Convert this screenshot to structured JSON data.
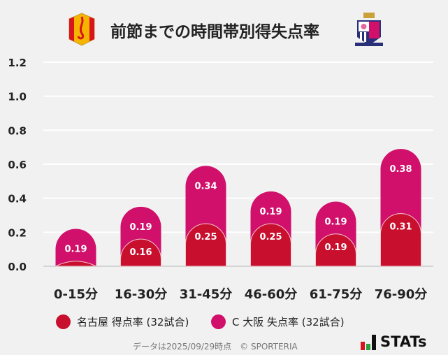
{
  "header": {
    "title": "前節までの時間帯別得失点率",
    "left_logo": "nagoya-grampus-crest",
    "right_logo": "cerezo-osaka-crest"
  },
  "chart_data": {
    "type": "bar",
    "stacked": true,
    "title": "前節までの時間帯別得失点率",
    "categories": [
      "0-15分",
      "16-30分",
      "31-45分",
      "46-60分",
      "61-75分",
      "76-90分"
    ],
    "series": [
      {
        "name": "名古屋 得点率 (32試合)",
        "color": "#c8102e",
        "values": [
          0.03,
          0.16,
          0.25,
          0.25,
          0.19,
          0.31
        ],
        "labels": [
          "",
          "0.16",
          "0.25",
          "0.25",
          "0.19",
          "0.31"
        ]
      },
      {
        "name": "C大阪 失点率 (32試合)",
        "color": "#d0106a",
        "values": [
          0.19,
          0.19,
          0.34,
          0.19,
          0.19,
          0.38
        ],
        "labels": [
          "0.19",
          "0.19",
          "0.34",
          "0.19",
          "0.19",
          "0.38"
        ]
      }
    ],
    "yticks": [
      "0.0",
      "0.2",
      "0.4",
      "0.6",
      "0.8",
      "1.0",
      "1.2"
    ],
    "ylim": [
      0,
      1.2
    ],
    "grid": true,
    "legend": "bottom"
  },
  "legend": {
    "items": [
      {
        "label": "名古屋 得点率 (32試合)",
        "color": "#c8102e"
      },
      {
        "label": "C 大阪 失点率 (32試合)",
        "color": "#d0106a"
      }
    ]
  },
  "footer": {
    "note": "データは2025/09/29時点　© SPORTERIA",
    "brand": "STATs"
  }
}
